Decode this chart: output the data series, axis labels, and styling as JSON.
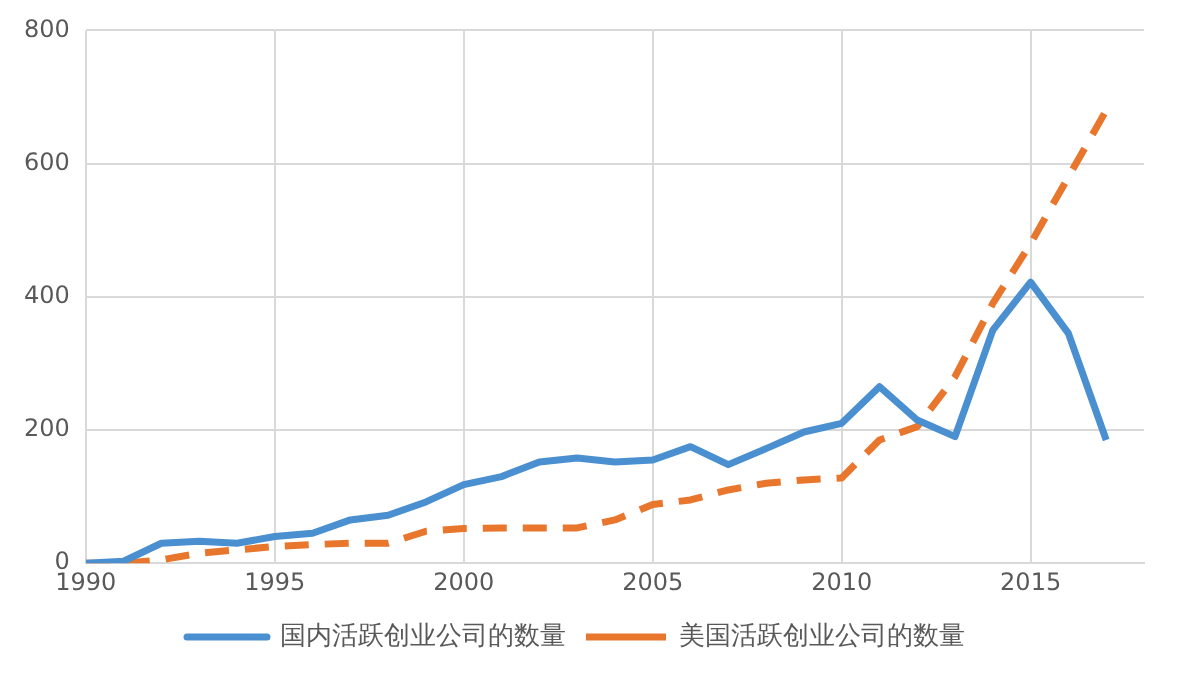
{
  "chart_data": {
    "type": "line",
    "x": [
      1990,
      1991,
      1992,
      1993,
      1994,
      1995,
      1996,
      1997,
      1998,
      1999,
      2000,
      2001,
      2002,
      2003,
      2004,
      2005,
      2006,
      2007,
      2008,
      2009,
      2010,
      2011,
      2012,
      2013,
      2014,
      2015,
      2016,
      2017
    ],
    "series": [
      {
        "name": "国内活跃创业公司的数量",
        "color": "#4a8fd0",
        "line_style": "solid",
        "values": [
          0,
          3,
          30,
          33,
          30,
          40,
          45,
          65,
          72,
          92,
          118,
          130,
          152,
          158,
          152,
          155,
          175,
          148,
          172,
          197,
          210,
          265,
          215,
          190,
          350,
          422,
          345,
          185
        ]
      },
      {
        "name": "美国活跃创业公司的数量",
        "color": "#e8762c",
        "line_style": "dashed",
        "values": [
          0,
          0,
          5,
          15,
          20,
          25,
          28,
          30,
          30,
          48,
          52,
          53,
          53,
          53,
          65,
          88,
          95,
          110,
          120,
          125,
          128,
          185,
          205,
          280,
          390,
          480,
          580,
          680
        ]
      }
    ],
    "xlim": [
      1990,
      2018
    ],
    "xticks": [
      1990,
      1995,
      2000,
      2005,
      2010,
      2015
    ],
    "ylim": [
      0,
      800
    ],
    "yticks": [
      0,
      200,
      400,
      600,
      800
    ],
    "grid": true,
    "legend": "bottom",
    "marker": "none"
  }
}
